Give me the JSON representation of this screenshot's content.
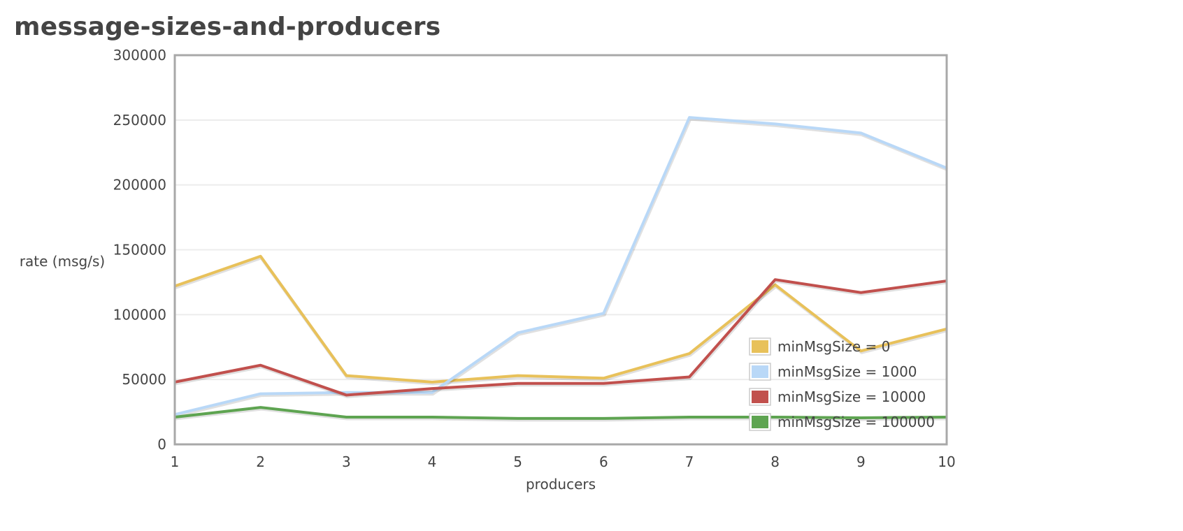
{
  "page": {
    "title": "message-sizes-and-producers"
  },
  "chart_data": {
    "type": "line",
    "title": "",
    "xlabel": "producers",
    "ylabel": "rate (msg/s)",
    "x": [
      1,
      2,
      3,
      4,
      5,
      6,
      7,
      8,
      9,
      10
    ],
    "xlim": [
      1,
      10
    ],
    "ylim": [
      0,
      300000
    ],
    "yticks": [
      0,
      50000,
      100000,
      150000,
      200000,
      250000,
      300000
    ],
    "grid": true,
    "legend_position": "bottom-right",
    "series": [
      {
        "name": "minMsgSize = 0",
        "color": "#e8c15a",
        "values": [
          122000,
          145000,
          53000,
          48000,
          53000,
          51000,
          70000,
          123000,
          72000,
          89000
        ]
      },
      {
        "name": "minMsgSize = 1000",
        "color": "#b9d8f7",
        "values": [
          23000,
          39000,
          40000,
          40000,
          86000,
          101000,
          252000,
          247000,
          240000,
          213000
        ]
      },
      {
        "name": "minMsgSize = 10000",
        "color": "#c1504d",
        "values": [
          48000,
          61000,
          38000,
          43000,
          47000,
          47000,
          52000,
          127000,
          117000,
          126000
        ]
      },
      {
        "name": "minMsgSize = 100000",
        "color": "#5ea451",
        "values": [
          21000,
          28500,
          21000,
          21000,
          20000,
          20000,
          21000,
          21000,
          20500,
          21000
        ]
      }
    ]
  }
}
